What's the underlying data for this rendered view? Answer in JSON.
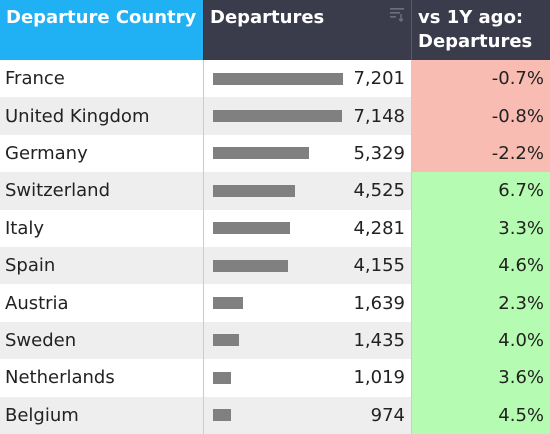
{
  "header": {
    "country": "Departure Country",
    "departures": "Departures",
    "vs": "vs 1Y ago: Departures"
  },
  "colors": {
    "negative": "#f8bcb3",
    "positive": "#b5fbb1"
  },
  "rows": [
    {
      "country": "France",
      "departures": "7,201",
      "value": 7201,
      "vs": "-0.7%",
      "sign": "negative"
    },
    {
      "country": "United Kingdom",
      "departures": "7,148",
      "value": 7148,
      "vs": "-0.8%",
      "sign": "negative"
    },
    {
      "country": "Germany",
      "departures": "5,329",
      "value": 5329,
      "vs": "-2.2%",
      "sign": "negative"
    },
    {
      "country": "Switzerland",
      "departures": "4,525",
      "value": 4525,
      "vs": "6.7%",
      "sign": "positive"
    },
    {
      "country": "Italy",
      "departures": "4,281",
      "value": 4281,
      "vs": "3.3%",
      "sign": "positive"
    },
    {
      "country": "Spain",
      "departures": "4,155",
      "value": 4155,
      "vs": "4.6%",
      "sign": "positive"
    },
    {
      "country": "Austria",
      "departures": "1,639",
      "value": 1639,
      "vs": "2.3%",
      "sign": "positive"
    },
    {
      "country": "Sweden",
      "departures": "1,435",
      "value": 1435,
      "vs": "4.0%",
      "sign": "positive"
    },
    {
      "country": "Netherlands",
      "departures": "1,019",
      "value": 1019,
      "vs": "3.6%",
      "sign": "positive"
    },
    {
      "country": "Belgium",
      "departures": "974",
      "value": 974,
      "vs": "4.5%",
      "sign": "positive"
    }
  ]
}
